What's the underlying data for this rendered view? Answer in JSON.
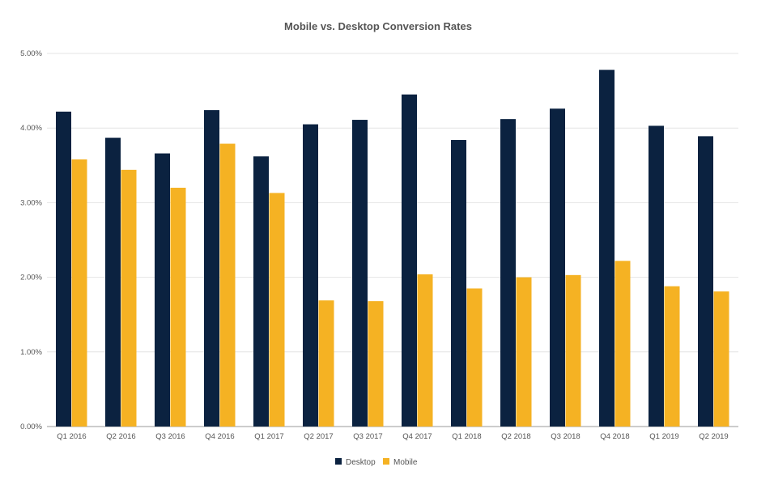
{
  "chart_data": {
    "type": "bar",
    "title": "Mobile vs. Desktop Conversion Rates",
    "xlabel": "",
    "ylabel": "",
    "ylim": [
      0,
      5
    ],
    "y_ticks": [
      "0.00%",
      "1.00%",
      "2.00%",
      "3.00%",
      "4.00%",
      "5.00%"
    ],
    "grid": true,
    "legend_position": "bottom",
    "categories": [
      "Q1 2016",
      "Q2 2016",
      "Q3 2016",
      "Q4 2016",
      "Q1 2017",
      "Q2 2017",
      "Q3 2017",
      "Q4 2017",
      "Q1 2018",
      "Q2 2018",
      "Q3 2018",
      "Q4 2018",
      "Q1 2019",
      "Q2 2019"
    ],
    "series": [
      {
        "name": "Desktop",
        "color": "#0b2240",
        "values": [
          4.22,
          3.87,
          3.66,
          4.24,
          3.62,
          4.05,
          4.11,
          4.45,
          3.84,
          4.12,
          4.26,
          4.78,
          4.03,
          3.89
        ]
      },
      {
        "name": "Mobile",
        "color": "#f5b223",
        "values": [
          3.58,
          3.44,
          3.2,
          3.79,
          3.13,
          1.69,
          1.68,
          2.04,
          1.85,
          2.0,
          2.03,
          2.22,
          1.88,
          1.81
        ]
      }
    ]
  }
}
